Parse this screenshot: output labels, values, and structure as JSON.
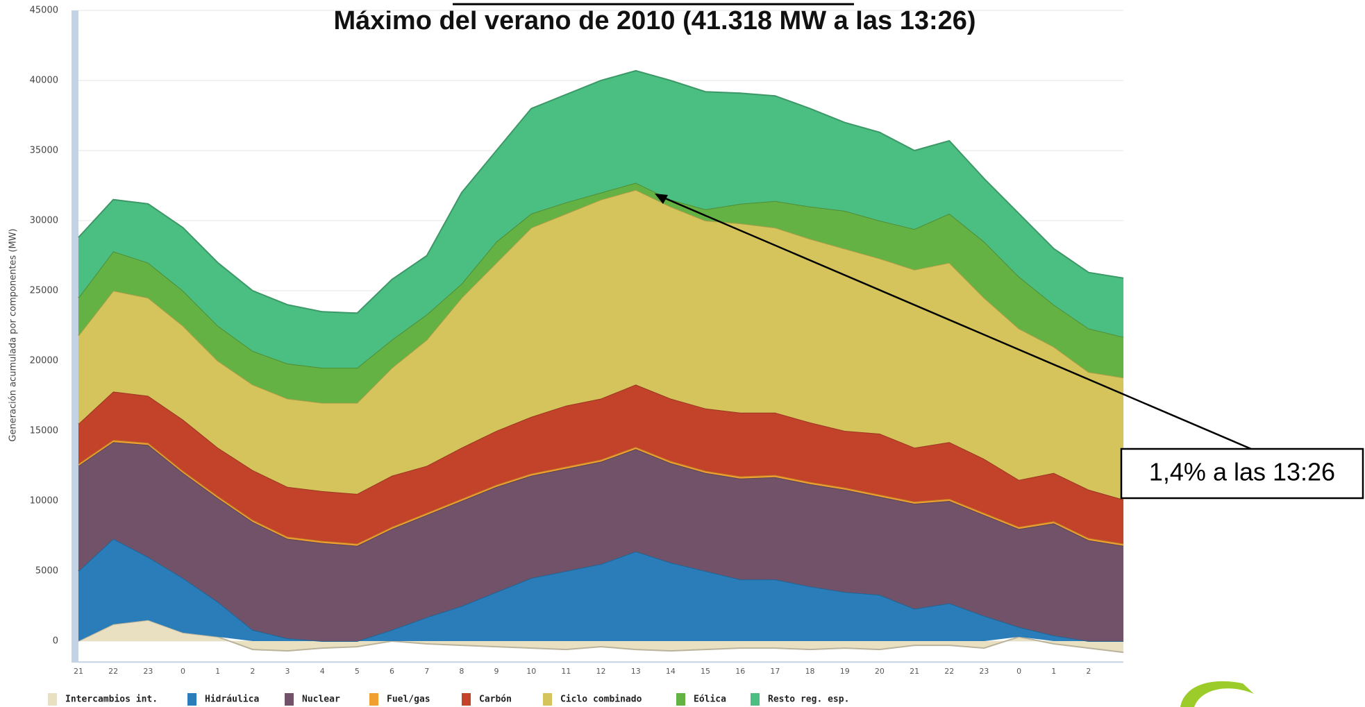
{
  "chart_data": {
    "type": "stacked_area",
    "title": "Máximo del verano de 2010 (41.318 MW a las 13:26)",
    "y_label": "Generación acumulada por componentes (MW)",
    "annotation": "1,4% a las 13:26",
    "categories": [
      "21",
      "22",
      "23",
      "0",
      "1",
      "2",
      "3",
      "4",
      "5",
      "6",
      "7",
      "8",
      "9",
      "10",
      "11",
      "12",
      "13",
      "14",
      "15",
      "16",
      "17",
      "18",
      "19",
      "20",
      "21",
      "22",
      "23",
      "0",
      "1",
      "2",
      null
    ],
    "ylim": [
      -1500,
      45000
    ],
    "yticks": [
      0,
      5000,
      10000,
      15000,
      20000,
      25000,
      30000,
      35000,
      40000,
      45000
    ],
    "grid": true,
    "series": [
      {
        "name": "Intercambios int.",
        "color": "#e9e0c2",
        "values": [
          0,
          1200,
          1500,
          600,
          300,
          -600,
          -700,
          -500,
          -400,
          0,
          -200,
          -300,
          -400,
          -500,
          -600,
          -400,
          -600,
          -700,
          -600,
          -500,
          -500,
          -600,
          -500,
          -600,
          -300,
          -300,
          -500,
          300,
          -200,
          -500,
          -800
        ]
      },
      {
        "name": "Hidráulica",
        "color": "#2a7db8",
        "values": [
          5000,
          6100,
          4500,
          3900,
          2500,
          800,
          200,
          0,
          0,
          800,
          1700,
          2500,
          3500,
          4500,
          5000,
          5500,
          6400,
          5600,
          5000,
          4400,
          4400,
          3900,
          3500,
          3300,
          2300,
          2700,
          1800,
          700,
          400,
          0,
          0
        ]
      },
      {
        "name": "Nuclear",
        "color": "#725269",
        "values": [
          7500,
          6900,
          8000,
          7500,
          7400,
          7700,
          7100,
          7000,
          6800,
          7200,
          7300,
          7500,
          7500,
          7300,
          7300,
          7300,
          7300,
          7100,
          7000,
          7200,
          7300,
          7300,
          7300,
          7000,
          7500,
          7300,
          7200,
          7000,
          8000,
          7200,
          6800
        ]
      },
      {
        "name": "Fuel/gas",
        "color": "#f0a030",
        "values": [
          150,
          150,
          150,
          150,
          150,
          150,
          150,
          150,
          150,
          150,
          150,
          150,
          150,
          150,
          150,
          150,
          150,
          150,
          150,
          150,
          150,
          150,
          150,
          150,
          150,
          150,
          150,
          150,
          150,
          150,
          150
        ]
      },
      {
        "name": "Carbón",
        "color": "#c2432a",
        "values": [
          2850,
          3450,
          3350,
          3650,
          3450,
          3550,
          3550,
          3550,
          3550,
          3650,
          3350,
          3650,
          3850,
          4050,
          4350,
          4350,
          4450,
          4450,
          4450,
          4550,
          4450,
          4250,
          4050,
          4350,
          3850,
          4050,
          3850,
          3350,
          3450,
          3450,
          3150
        ]
      },
      {
        "name": "Ciclo combinado",
        "color": "#d4c45b",
        "values": [
          6300,
          7200,
          7000,
          6700,
          6200,
          6100,
          6300,
          6300,
          6500,
          7700,
          9000,
          10700,
          12000,
          13500,
          13700,
          14200,
          13900,
          13700,
          13400,
          13500,
          13200,
          13100,
          13000,
          12500,
          12700,
          12800,
          11500,
          10800,
          9000,
          8400,
          8700
        ]
      },
      {
        "name": "Eólica",
        "color": "#63b243",
        "values": [
          2700,
          2800,
          2500,
          2500,
          2500,
          2400,
          2500,
          2500,
          2500,
          2000,
          1800,
          1000,
          1500,
          1000,
          800,
          500,
          500,
          500,
          800,
          1400,
          1900,
          2300,
          2700,
          2700,
          2900,
          3500,
          4000,
          3700,
          3000,
          3100,
          2900
        ]
      },
      {
        "name": "Resto reg. esp.",
        "color": "#4bbe81",
        "values": [
          4300,
          3700,
          4200,
          4500,
          4500,
          4300,
          4200,
          4000,
          3900,
          4300,
          4200,
          6500,
          6500,
          7500,
          7700,
          8000,
          8000,
          8500,
          8400,
          7900,
          7500,
          7000,
          6300,
          6300,
          5600,
          5200,
          4500,
          4500,
          4000,
          4000,
          4200
        ]
      }
    ]
  }
}
